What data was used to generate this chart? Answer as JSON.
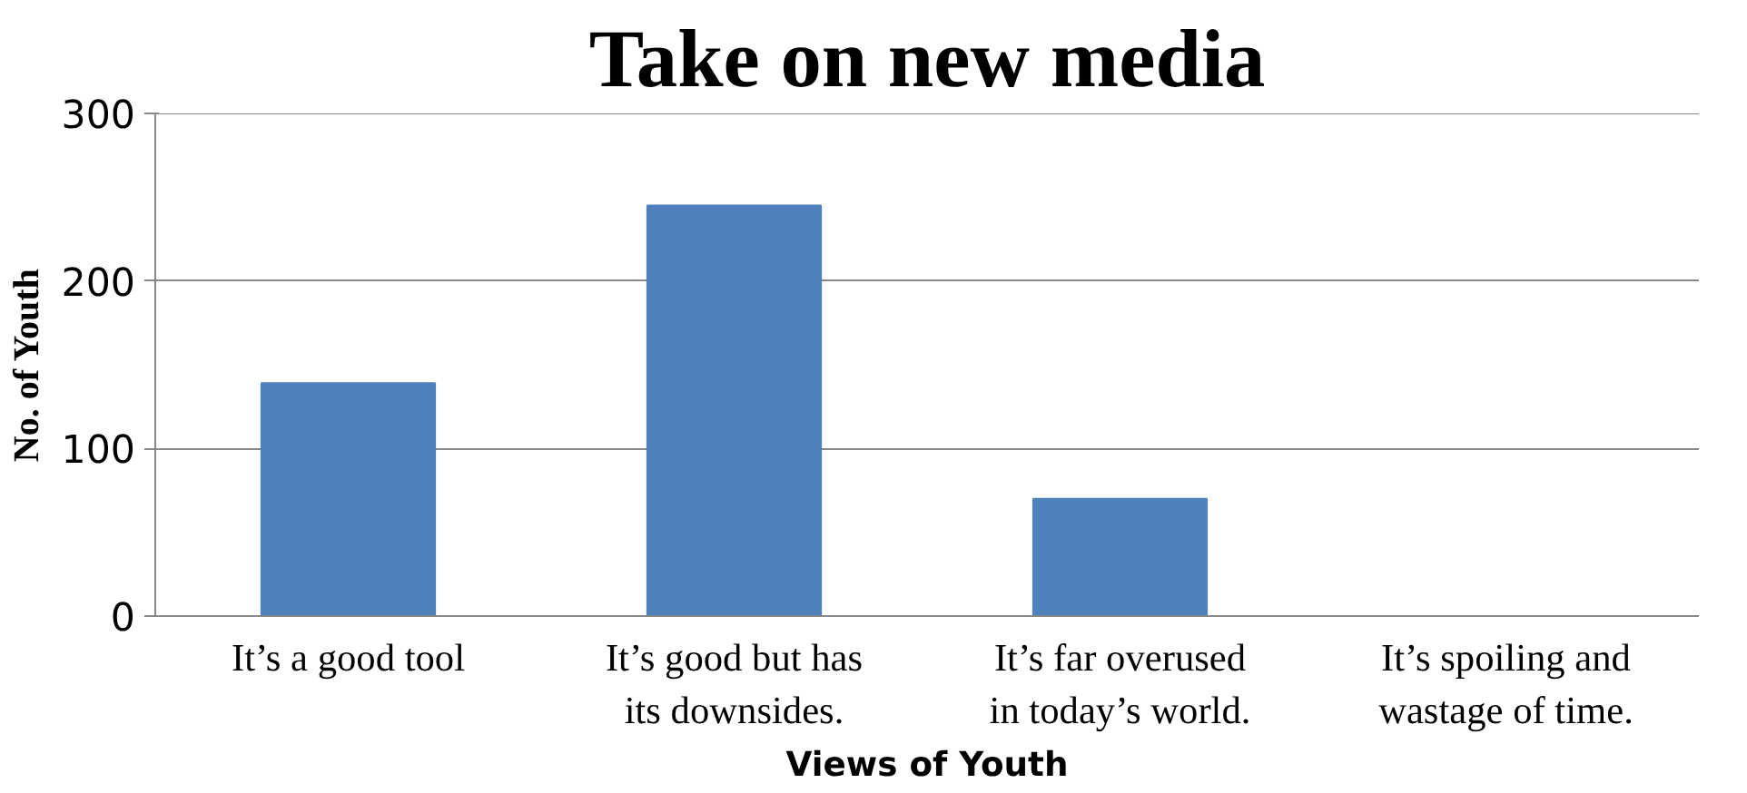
{
  "chart_data": {
    "type": "bar",
    "title": "Take on new media",
    "xlabel": "Views of Youth",
    "ylabel": "No. of Youth",
    "categories": [
      "It’s a good tool",
      "It’s good but has its downsides.",
      "It’s far overused in today’s world.",
      "It’s spoiling and wastage of time."
    ],
    "values": [
      139,
      245,
      70,
      0
    ],
    "color": "#4f81bd",
    "ylim": [
      0,
      300
    ],
    "yticks": [
      0,
      100,
      200,
      300
    ],
    "grid": "y"
  }
}
